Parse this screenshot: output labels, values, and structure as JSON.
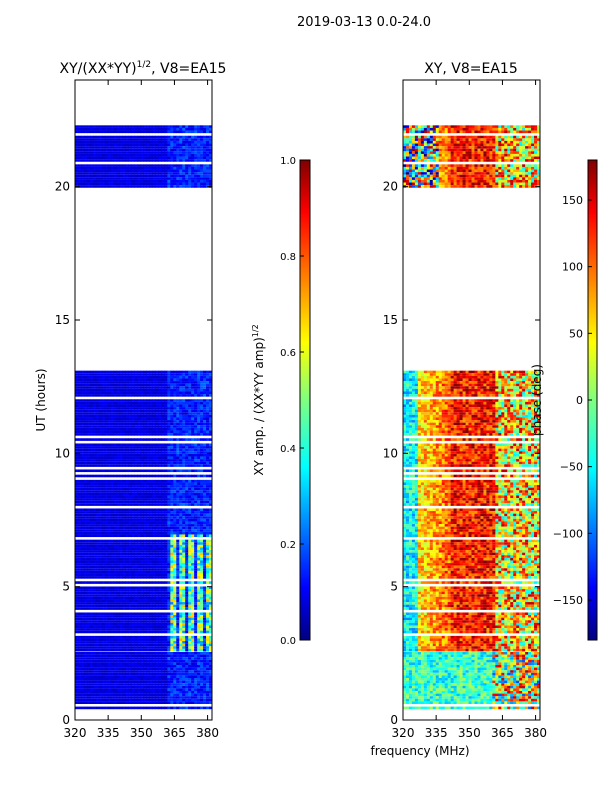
{
  "figure_title": "2019-03-13 0.0-24.0",
  "shared_xlabel": "frequency (MHz)",
  "chart_data": [
    {
      "type": "heatmap",
      "title": "XY/(XX*YY)",
      "title_exponent": "1/2",
      "title_suffix": ", V8=EA15",
      "xlabel": "",
      "ylabel": "UT (hours)",
      "xlim": [
        320,
        382
      ],
      "ylim": [
        0,
        24
      ],
      "xticks": [
        320,
        335,
        350,
        365,
        380
      ],
      "yticks": [
        0,
        5,
        10,
        15,
        20
      ],
      "data_ut_ranges": [
        [
          0.45,
          2.55
        ],
        [
          2.6,
          13.1
        ],
        [
          19.95,
          22.3
        ]
      ],
      "colorbar": {
        "label": "XY amp. / (XX*YY amp)",
        "label_exponent": "1/2",
        "min": 0.0,
        "max": 1.0,
        "ticks": [
          "0.0",
          "0.2",
          "0.4",
          "0.6",
          "0.8",
          "1.0"
        ],
        "colormap": "jet"
      }
    },
    {
      "type": "heatmap",
      "title": "XY, V8=EA15",
      "xlabel": "frequency (MHz)",
      "ylabel": "",
      "xlim": [
        320,
        382
      ],
      "ylim": [
        0,
        24
      ],
      "xticks": [
        320,
        335,
        350,
        365,
        380
      ],
      "yticks": [
        0,
        5,
        10,
        15,
        20
      ],
      "data_ut_ranges": [
        [
          0.45,
          2.55
        ],
        [
          2.6,
          13.1
        ],
        [
          19.95,
          22.3
        ]
      ],
      "colorbar": {
        "label": "phase (deg)",
        "min": -180,
        "max": 180,
        "ticks": [
          "−150",
          "−100",
          "−50",
          "0",
          "50",
          "100",
          "150"
        ],
        "tick_values": [
          -150,
          -100,
          -50,
          0,
          50,
          100,
          150
        ],
        "colormap": "jet"
      }
    }
  ],
  "colors": {
    "jet_0": "#000080",
    "jet_1": "#0000ff",
    "jet_2": "#00ffff",
    "jet_3": "#ffff00",
    "jet_4": "#ff0000",
    "jet_5": "#800000",
    "amp_base": "#0a1fb0"
  }
}
